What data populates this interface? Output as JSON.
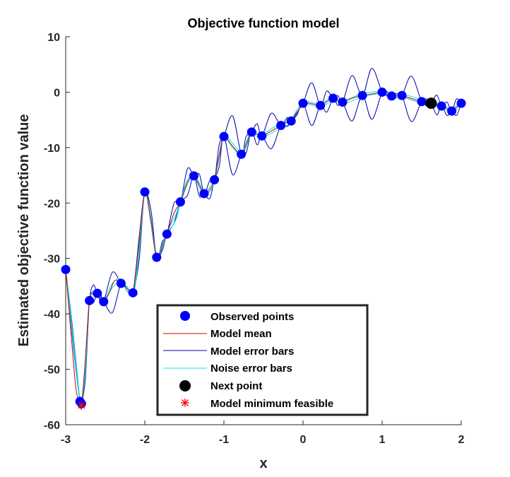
{
  "chart_data": {
    "type": "line",
    "title": "Objective function model",
    "xlabel": "x",
    "ylabel": "Estimated objective function value",
    "xlim": [
      -3,
      2
    ],
    "ylim": [
      -60,
      10
    ],
    "xticks": [
      -3,
      -2,
      -1,
      0,
      1,
      2
    ],
    "yticks": [
      -60,
      -50,
      -40,
      -30,
      -20,
      -10,
      0,
      10
    ],
    "xtick_labels": [
      "-3",
      "-2",
      "-1",
      "0",
      "1",
      "2"
    ],
    "ytick_labels": [
      "-60",
      "-50",
      "-40",
      "-30",
      "-20",
      "-10",
      "0",
      "10"
    ],
    "legend": {
      "position": "bottom-center",
      "entries": [
        "Observed points",
        "Model mean",
        "Model error bars",
        "Noise error bars",
        "Next point",
        "Model minimum feasible"
      ]
    },
    "colors": {
      "observed": "#0000ff",
      "model_mean": "#cc0000",
      "model_error": "#0000aa",
      "noise_error": "#00e5ee",
      "next_point": "#000000",
      "model_min": "#ff0000"
    },
    "series": [
      {
        "name": "Observed points",
        "kind": "markers",
        "x": [
          -3.0,
          -2.82,
          -2.8,
          -2.7,
          -2.6,
          -2.52,
          -2.3,
          -2.15,
          -2.0,
          -1.85,
          -1.72,
          -1.55,
          -1.38,
          -1.25,
          -1.12,
          -1.0,
          -0.78,
          -0.65,
          -0.52,
          -0.28,
          -0.15,
          0.0,
          0.22,
          0.38,
          0.5,
          0.75,
          1.0,
          1.12,
          1.25,
          1.5,
          1.62,
          1.75,
          1.88,
          2.0
        ],
        "y": [
          -32.0,
          -55.8,
          -56.2,
          -37.6,
          -36.3,
          -37.8,
          -34.5,
          -36.2,
          -18.0,
          -29.8,
          -25.6,
          -19.8,
          -15.1,
          -18.3,
          -15.8,
          -8.0,
          -11.2,
          -7.2,
          -7.9,
          -6.0,
          -5.2,
          -2.0,
          -2.4,
          -1.1,
          -1.8,
          -0.6,
          0.0,
          -0.7,
          -0.6,
          -1.7,
          -2.0,
          -2.5,
          -3.4,
          -2.0
        ]
      },
      {
        "name": "Model mean",
        "kind": "line",
        "x": [
          -3.0,
          -2.93,
          -2.87,
          -2.82,
          -2.8,
          -2.76,
          -2.7,
          -2.65,
          -2.6,
          -2.56,
          -2.52,
          -2.45,
          -2.38,
          -2.3,
          -2.22,
          -2.15,
          -2.08,
          -2.0,
          -1.93,
          -1.85,
          -1.78,
          -1.72,
          -1.63,
          -1.55,
          -1.46,
          -1.38,
          -1.31,
          -1.25,
          -1.18,
          -1.12,
          -1.06,
          -1.0,
          -0.9,
          -0.78,
          -0.72,
          -0.65,
          -0.58,
          -0.52,
          -0.4,
          -0.28,
          -0.2,
          -0.15,
          -0.08,
          0.0,
          0.11,
          0.22,
          0.3,
          0.38,
          0.44,
          0.5,
          0.62,
          0.75,
          0.88,
          1.0,
          1.06,
          1.12,
          1.18,
          1.25,
          1.38,
          1.5,
          1.56,
          1.62,
          1.69,
          1.75,
          1.82,
          1.88,
          1.94,
          2.0
        ],
        "y": [
          -32.0,
          -44.0,
          -53.5,
          -55.8,
          -56.2,
          -50.0,
          -37.6,
          -36.4,
          -36.3,
          -37.1,
          -37.8,
          -36.2,
          -34.0,
          -34.5,
          -35.5,
          -36.2,
          -28.0,
          -18.0,
          -22.5,
          -29.8,
          -27.8,
          -25.6,
          -21.8,
          -19.8,
          -16.2,
          -15.1,
          -16.8,
          -18.3,
          -17.6,
          -15.8,
          -11.5,
          -8.0,
          -9.6,
          -11.2,
          -9.5,
          -7.2,
          -7.6,
          -7.9,
          -7.0,
          -6.0,
          -5.4,
          -5.2,
          -3.9,
          -2.0,
          -2.1,
          -2.4,
          -1.7,
          -1.1,
          -1.5,
          -1.8,
          -1.1,
          -0.6,
          -0.3,
          0.0,
          -0.3,
          -0.7,
          -0.6,
          -0.6,
          -1.2,
          -1.7,
          -1.85,
          -2.0,
          -2.3,
          -2.5,
          -3.0,
          -3.4,
          -2.7,
          -2.0
        ]
      },
      {
        "name": "Model error bars",
        "kind": "band",
        "x": [
          -3.0,
          -2.91,
          -2.82,
          -2.8,
          -2.75,
          -2.7,
          -2.65,
          -2.6,
          -2.56,
          -2.52,
          -2.41,
          -2.3,
          -2.22,
          -2.15,
          -2.07,
          -2.0,
          -1.92,
          -1.85,
          -1.78,
          -1.72,
          -1.63,
          -1.55,
          -1.46,
          -1.38,
          -1.31,
          -1.25,
          -1.18,
          -1.12,
          -1.06,
          -1.0,
          -0.89,
          -0.78,
          -0.72,
          -0.65,
          -0.58,
          -0.52,
          -0.4,
          -0.28,
          -0.2,
          -0.15,
          -0.08,
          0.0,
          0.11,
          0.22,
          0.3,
          0.38,
          0.44,
          0.5,
          0.62,
          0.75,
          0.87,
          1.0,
          1.06,
          1.12,
          1.18,
          1.25,
          1.37,
          1.5,
          1.56,
          1.62,
          1.69,
          1.75,
          1.82,
          1.88,
          1.94,
          2.0
        ],
        "upper": [
          -32.0,
          -43.0,
          -55.8,
          -56.2,
          -48.5,
          -37.6,
          -34.8,
          -36.3,
          -36.2,
          -37.8,
          -32.5,
          -34.5,
          -35.2,
          -36.2,
          -26.0,
          -18.0,
          -21.5,
          -29.8,
          -27.0,
          -25.6,
          -20.0,
          -19.8,
          -13.8,
          -15.1,
          -14.8,
          -18.3,
          -16.0,
          -15.8,
          -9.5,
          -8.0,
          -4.3,
          -11.2,
          -8.0,
          -7.2,
          -5.7,
          -7.9,
          -3.8,
          -6.0,
          -4.6,
          -5.2,
          -3.6,
          -2.0,
          1.7,
          -2.4,
          0.2,
          -1.1,
          -0.6,
          -1.8,
          3.0,
          -0.6,
          4.3,
          0.0,
          0.1,
          -0.7,
          -0.2,
          -0.6,
          2.9,
          -1.7,
          -1.2,
          -2.0,
          -0.5,
          -2.5,
          -1.8,
          -3.4,
          -1.2,
          -2.0
        ],
        "lower": [
          -32.0,
          -45.0,
          -55.8,
          -56.2,
          -51.5,
          -37.6,
          -38.0,
          -36.3,
          -38.0,
          -37.8,
          -39.8,
          -34.5,
          -36.0,
          -36.2,
          -30.0,
          -18.0,
          -23.5,
          -29.8,
          -28.6,
          -25.6,
          -23.6,
          -19.8,
          -18.6,
          -15.1,
          -18.8,
          -18.3,
          -19.2,
          -15.8,
          -13.5,
          -8.0,
          -14.9,
          -11.2,
          -11.0,
          -7.2,
          -9.5,
          -7.9,
          -10.2,
          -6.0,
          -6.2,
          -5.2,
          -4.2,
          -2.0,
          -6.0,
          -2.4,
          -3.6,
          -1.1,
          -2.4,
          -1.8,
          -5.2,
          -0.6,
          -4.9,
          0.0,
          -0.7,
          -0.7,
          -1.0,
          -0.6,
          -5.3,
          -1.7,
          -2.5,
          -2.0,
          -4.1,
          -2.5,
          -4.2,
          -3.4,
          -4.2,
          -2.0
        ]
      },
      {
        "name": "Noise error bars",
        "kind": "band",
        "x": [
          -3.0,
          -2.91,
          -2.82,
          -2.8,
          -2.75,
          -2.7,
          -2.6,
          -2.52,
          -2.41,
          -2.3,
          -2.15,
          -2.07,
          -2.0,
          -1.93,
          -1.85,
          -1.78,
          -1.72,
          -1.6,
          -1.55,
          -1.46,
          -1.38,
          -1.31,
          -1.25,
          -1.18,
          -1.12,
          -1.06,
          -1.0,
          -0.89,
          -0.78,
          -0.72,
          -0.65,
          -0.58,
          -0.52,
          -0.4,
          -0.28,
          -0.15,
          0.0,
          0.22,
          0.38,
          0.5,
          0.75,
          1.0,
          1.12,
          1.25,
          1.5,
          1.62,
          1.75,
          1.88,
          1.94,
          2.0
        ],
        "upper": [
          -32.0,
          -43.6,
          -55.6,
          -56.0,
          -49.6,
          -37.4,
          -36.1,
          -37.6,
          -34.5,
          -33.7,
          -35.8,
          -27.6,
          -17.8,
          -22.0,
          -29.4,
          -27.4,
          -25.3,
          -21.8,
          -19.5,
          -15.8,
          -14.9,
          -16.4,
          -18.0,
          -17.2,
          -15.5,
          -11.2,
          -7.8,
          -9.2,
          -10.9,
          -9.1,
          -6.9,
          -7.2,
          -7.6,
          -6.6,
          -5.7,
          -4.9,
          -1.8,
          -2.1,
          -0.8,
          -1.5,
          -0.3,
          0.2,
          -0.4,
          -0.3,
          -1.4,
          -1.7,
          -2.2,
          -3.1,
          -2.4,
          -1.8
        ],
        "lower": [
          -32.2,
          -44.4,
          -56.0,
          -56.4,
          -50.4,
          -37.8,
          -36.5,
          -38.0,
          -35.3,
          -34.3,
          -36.6,
          -28.4,
          -18.2,
          -23.0,
          -30.2,
          -28.2,
          -25.9,
          -22.8,
          -20.1,
          -16.6,
          -15.3,
          -17.2,
          -18.6,
          -18.0,
          -16.1,
          -11.8,
          -8.2,
          -10.0,
          -11.5,
          -9.9,
          -7.5,
          -8.0,
          -8.2,
          -7.4,
          -6.3,
          -5.5,
          -2.2,
          -2.7,
          -1.4,
          -2.1,
          -0.9,
          -0.2,
          -1.0,
          -0.9,
          -2.0,
          -2.3,
          -2.8,
          -3.7,
          -3.0,
          -2.2
        ]
      },
      {
        "name": "Next point",
        "kind": "marker",
        "x": [
          1.62
        ],
        "y": [
          -2.0
        ]
      },
      {
        "name": "Model minimum feasible",
        "kind": "marker",
        "x": [
          -2.8
        ],
        "y": [
          -56.5
        ]
      }
    ]
  }
}
